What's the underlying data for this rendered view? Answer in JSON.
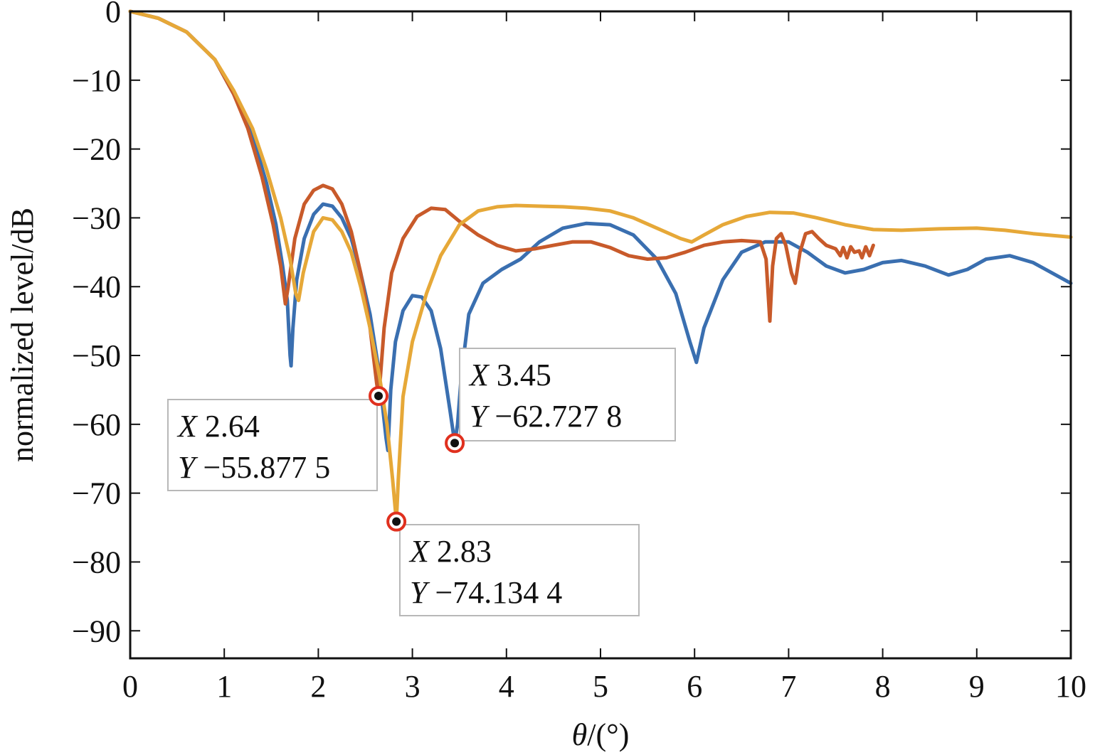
{
  "chart_data": {
    "type": "line",
    "xlabel": "θ/(°)",
    "ylabel": "normalized level/dB",
    "xlim": [
      0,
      10
    ],
    "ylim": [
      -94,
      0
    ],
    "x_ticks": [
      "0",
      "1",
      "2",
      "3",
      "4",
      "5",
      "6",
      "7",
      "8",
      "9",
      "10"
    ],
    "y_ticks": [
      "0",
      "−10",
      "−20",
      "−30",
      "−40",
      "−50",
      "−60",
      "−70",
      "−80",
      "−90"
    ],
    "grid": false,
    "series": [
      {
        "color": "#3a6fb0",
        "points": [
          [
            0,
            0
          ],
          [
            0.3,
            -1
          ],
          [
            0.6,
            -3
          ],
          [
            0.9,
            -7
          ],
          [
            1.1,
            -12
          ],
          [
            1.3,
            -18
          ],
          [
            1.45,
            -25
          ],
          [
            1.55,
            -31
          ],
          [
            1.62,
            -37
          ],
          [
            1.67,
            -42
          ],
          [
            1.7,
            -50
          ],
          [
            1.71,
            -51.5
          ],
          [
            1.73,
            -46
          ],
          [
            1.77,
            -39
          ],
          [
            1.85,
            -33
          ],
          [
            1.95,
            -29.5
          ],
          [
            2.05,
            -28
          ],
          [
            2.15,
            -28.3
          ],
          [
            2.25,
            -30
          ],
          [
            2.35,
            -33
          ],
          [
            2.45,
            -38
          ],
          [
            2.55,
            -44
          ],
          [
            2.63,
            -51
          ],
          [
            2.68,
            -57
          ],
          [
            2.72,
            -62
          ],
          [
            2.74,
            -63.8
          ],
          [
            2.77,
            -55
          ],
          [
            2.82,
            -48
          ],
          [
            2.9,
            -43.5
          ],
          [
            3.0,
            -41.3
          ],
          [
            3.1,
            -41.5
          ],
          [
            3.2,
            -43.5
          ],
          [
            3.3,
            -49
          ],
          [
            3.4,
            -58
          ],
          [
            3.45,
            -62.7
          ],
          [
            3.48,
            -60
          ],
          [
            3.52,
            -53
          ],
          [
            3.6,
            -44
          ],
          [
            3.75,
            -39.5
          ],
          [
            3.95,
            -37.5
          ],
          [
            4.15,
            -36
          ],
          [
            4.35,
            -33.5
          ],
          [
            4.6,
            -31.5
          ],
          [
            4.85,
            -30.8
          ],
          [
            5.1,
            -31
          ],
          [
            5.35,
            -32.5
          ],
          [
            5.6,
            -36
          ],
          [
            5.8,
            -41
          ],
          [
            5.95,
            -48
          ],
          [
            6.02,
            -51
          ],
          [
            6.1,
            -46
          ],
          [
            6.3,
            -39
          ],
          [
            6.5,
            -35
          ],
          [
            6.75,
            -33.5
          ],
          [
            7.0,
            -33.5
          ],
          [
            7.2,
            -35
          ],
          [
            7.4,
            -37
          ],
          [
            7.6,
            -38
          ],
          [
            7.8,
            -37.5
          ],
          [
            8.0,
            -36.5
          ],
          [
            8.2,
            -36.2
          ],
          [
            8.45,
            -37
          ],
          [
            8.7,
            -38.3
          ],
          [
            8.9,
            -37.5
          ],
          [
            9.1,
            -36
          ],
          [
            9.35,
            -35.5
          ],
          [
            9.6,
            -36.5
          ],
          [
            9.8,
            -38
          ],
          [
            10.0,
            -39.5
          ]
        ]
      },
      {
        "color": "#c85a2a",
        "points": [
          [
            0,
            0
          ],
          [
            0.3,
            -1
          ],
          [
            0.6,
            -3
          ],
          [
            0.9,
            -7
          ],
          [
            1.1,
            -12
          ],
          [
            1.25,
            -17
          ],
          [
            1.4,
            -24
          ],
          [
            1.52,
            -31
          ],
          [
            1.6,
            -37
          ],
          [
            1.65,
            -42.5
          ],
          [
            1.68,
            -40
          ],
          [
            1.75,
            -33
          ],
          [
            1.85,
            -28
          ],
          [
            1.95,
            -26
          ],
          [
            2.05,
            -25.3
          ],
          [
            2.15,
            -25.8
          ],
          [
            2.25,
            -28
          ],
          [
            2.35,
            -32
          ],
          [
            2.45,
            -38
          ],
          [
            2.55,
            -46
          ],
          [
            2.62,
            -54
          ],
          [
            2.64,
            -55.9
          ],
          [
            2.66,
            -53
          ],
          [
            2.7,
            -46
          ],
          [
            2.78,
            -38
          ],
          [
            2.9,
            -33
          ],
          [
            3.05,
            -29.8
          ],
          [
            3.2,
            -28.6
          ],
          [
            3.35,
            -28.8
          ],
          [
            3.5,
            -30.5
          ],
          [
            3.7,
            -32.5
          ],
          [
            3.9,
            -34
          ],
          [
            4.1,
            -34.8
          ],
          [
            4.3,
            -34.5
          ],
          [
            4.5,
            -34
          ],
          [
            4.7,
            -33.5
          ],
          [
            4.9,
            -33.5
          ],
          [
            5.1,
            -34.3
          ],
          [
            5.3,
            -35.5
          ],
          [
            5.5,
            -36
          ],
          [
            5.7,
            -35.8
          ],
          [
            5.9,
            -35
          ],
          [
            6.1,
            -34
          ],
          [
            6.3,
            -33.5
          ],
          [
            6.5,
            -33.3
          ],
          [
            6.7,
            -33.5
          ],
          [
            6.76,
            -36
          ],
          [
            6.8,
            -45
          ],
          [
            6.83,
            -37
          ],
          [
            6.87,
            -33
          ],
          [
            6.92,
            -32.3
          ],
          [
            6.97,
            -34
          ],
          [
            7.03,
            -38
          ],
          [
            7.07,
            -39.5
          ],
          [
            7.12,
            -35
          ],
          [
            7.18,
            -32.3
          ],
          [
            7.25,
            -32
          ],
          [
            7.32,
            -33
          ],
          [
            7.4,
            -34
          ],
          [
            7.5,
            -34.5
          ],
          [
            7.55,
            -35.5
          ],
          [
            7.58,
            -34.3
          ],
          [
            7.62,
            -35.8
          ],
          [
            7.66,
            -34.2
          ],
          [
            7.7,
            -35
          ],
          [
            7.75,
            -34.8
          ],
          [
            7.78,
            -35.8
          ],
          [
            7.82,
            -34.2
          ],
          [
            7.86,
            -35.5
          ],
          [
            7.9,
            -34
          ]
        ]
      },
      {
        "color": "#e6a838",
        "points": [
          [
            0,
            0
          ],
          [
            0.3,
            -1
          ],
          [
            0.6,
            -3
          ],
          [
            0.9,
            -7
          ],
          [
            1.1,
            -11.5
          ],
          [
            1.3,
            -17
          ],
          [
            1.45,
            -23
          ],
          [
            1.6,
            -30
          ],
          [
            1.7,
            -36
          ],
          [
            1.76,
            -41
          ],
          [
            1.79,
            -42
          ],
          [
            1.84,
            -38
          ],
          [
            1.95,
            -32
          ],
          [
            2.05,
            -30
          ],
          [
            2.15,
            -30.3
          ],
          [
            2.25,
            -32
          ],
          [
            2.35,
            -35
          ],
          [
            2.45,
            -40
          ],
          [
            2.55,
            -46
          ],
          [
            2.65,
            -53
          ],
          [
            2.73,
            -60
          ],
          [
            2.79,
            -68
          ],
          [
            2.83,
            -74.1
          ],
          [
            2.85,
            -68
          ],
          [
            2.9,
            -56
          ],
          [
            3.0,
            -48
          ],
          [
            3.15,
            -41
          ],
          [
            3.3,
            -35.5
          ],
          [
            3.5,
            -31
          ],
          [
            3.7,
            -29
          ],
          [
            3.9,
            -28.4
          ],
          [
            4.1,
            -28.2
          ],
          [
            4.35,
            -28.3
          ],
          [
            4.6,
            -28.4
          ],
          [
            4.85,
            -28.6
          ],
          [
            5.1,
            -29
          ],
          [
            5.35,
            -30
          ],
          [
            5.6,
            -31.5
          ],
          [
            5.85,
            -33
          ],
          [
            5.97,
            -33.5
          ],
          [
            6.1,
            -32.5
          ],
          [
            6.3,
            -31
          ],
          [
            6.55,
            -29.8
          ],
          [
            6.8,
            -29.2
          ],
          [
            7.05,
            -29.3
          ],
          [
            7.3,
            -30
          ],
          [
            7.6,
            -31
          ],
          [
            7.9,
            -31.7
          ],
          [
            8.2,
            -31.8
          ],
          [
            8.6,
            -31.6
          ],
          [
            9.0,
            -31.5
          ],
          [
            9.3,
            -31.8
          ],
          [
            9.6,
            -32.3
          ],
          [
            10.0,
            -32.8
          ]
        ]
      }
    ],
    "datatips": [
      {
        "x": 2.64,
        "y": -55.8775,
        "x_text": "2.64",
        "y_text": "−55.877 5"
      },
      {
        "x": 3.45,
        "y": -62.7278,
        "x_text": "3.45",
        "y_text": "−62.727 8"
      },
      {
        "x": 2.83,
        "y": -74.1344,
        "x_text": "2.83",
        "y_text": "−74.134 4"
      }
    ],
    "datatip_x_letter": "X",
    "datatip_y_letter": "Y"
  }
}
